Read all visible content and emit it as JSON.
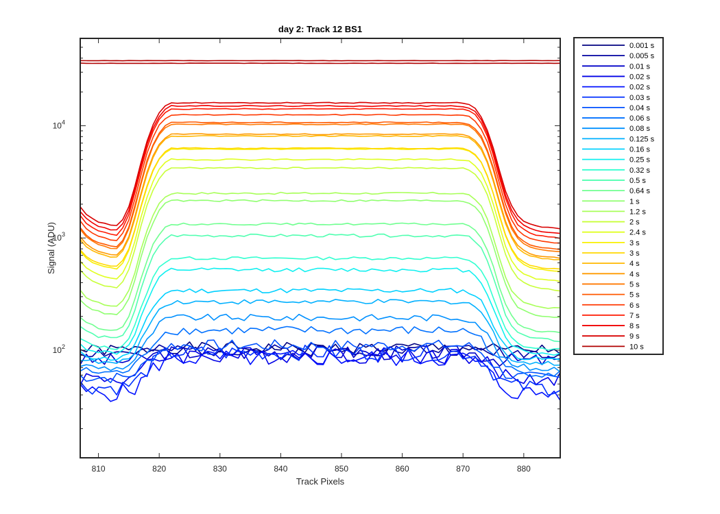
{
  "chart_data": {
    "type": "line",
    "title": "day 2: Track 12  BS1",
    "xlabel": "Track Pixels",
    "ylabel": "Signal (ADU)",
    "xlim": [
      807,
      886
    ],
    "ylim": [
      11,
      60000
    ],
    "yscale": "log",
    "grid": false,
    "legend_position": "outside-right",
    "xticks": [
      810,
      820,
      830,
      840,
      850,
      860,
      870,
      880
    ],
    "yticks": [
      {
        "value": 100,
        "base": "10",
        "exp": "2"
      },
      {
        "value": 1000,
        "base": "10",
        "exp": "3"
      },
      {
        "value": 10000,
        "base": "10",
        "exp": "4"
      }
    ],
    "profile": {
      "x": [
        807,
        808,
        809,
        810,
        811,
        812,
        813,
        814,
        815,
        816,
        817,
        818,
        819,
        820,
        821,
        822,
        823,
        824,
        825,
        826,
        827,
        828,
        829,
        830,
        831,
        832,
        833,
        834,
        835,
        836,
        837,
        838,
        839,
        840,
        841,
        842,
        843,
        844,
        845,
        846,
        847,
        848,
        849,
        850,
        851,
        852,
        853,
        854,
        855,
        856,
        857,
        858,
        859,
        860,
        861,
        862,
        863,
        864,
        865,
        866,
        867,
        868,
        869,
        870,
        871,
        872,
        873,
        874,
        875,
        876,
        877,
        878,
        879,
        880,
        881,
        882,
        883,
        884,
        885,
        886
      ],
      "shape": [
        0.072,
        0.055,
        0.046,
        0.04,
        0.037,
        0.034,
        0.033,
        0.045,
        0.075,
        0.14,
        0.26,
        0.43,
        0.62,
        0.8,
        0.93,
        1.0,
        1.0,
        1.0,
        1.0,
        1.0,
        1.0,
        1.0,
        1.0,
        1.0,
        1.0,
        1.0,
        1.0,
        1.0,
        1.0,
        1.0,
        1.0,
        1.0,
        1.0,
        1.0,
        1.0,
        1.0,
        1.0,
        1.0,
        1.0,
        1.0,
        1.0,
        1.0,
        1.0,
        1.0,
        1.0,
        1.0,
        1.0,
        1.0,
        1.0,
        1.0,
        1.0,
        1.0,
        1.0,
        1.0,
        1.0,
        1.0,
        1.0,
        1.0,
        1.0,
        1.0,
        1.0,
        1.0,
        1.0,
        0.99,
        0.96,
        0.88,
        0.74,
        0.55,
        0.36,
        0.21,
        0.12,
        0.075,
        0.052,
        0.042,
        0.036,
        0.033,
        0.031,
        0.03,
        0.029,
        0.028
      ]
    },
    "series": [
      {
        "name": "0.001 s",
        "color": "#000080",
        "plateau": 105,
        "baseline": 100,
        "noise": 0.12,
        "seed": 1
      },
      {
        "name": "0.005 s",
        "color": "#0000A0",
        "plateau": 100,
        "baseline": 95,
        "noise": 0.12,
        "seed": 2
      },
      {
        "name": "0.01 s",
        "color": "#0000C8",
        "plateau": 95,
        "baseline": 80,
        "noise": 0.15,
        "seed": 3
      },
      {
        "name": "0.02 s",
        "color": "#0000E6",
        "plateau": 90,
        "baseline": 55,
        "noise": 0.18,
        "seed": 4
      },
      {
        "name": "0.02 s",
        "color": "#0010FF",
        "plateau": 85,
        "baseline": 40,
        "noise": 0.18,
        "seed": 5
      },
      {
        "name": "0.03 s",
        "color": "#0030FF",
        "plateau": 95,
        "baseline": 45,
        "noise": 0.16,
        "seed": 6
      },
      {
        "name": "0.04 s",
        "color": "#0050FF",
        "plateau": 110,
        "baseline": 55,
        "noise": 0.12,
        "seed": 7
      },
      {
        "name": "0.06 s",
        "color": "#0070FF",
        "plateau": 150,
        "baseline": 60,
        "noise": 0.09,
        "seed": 8
      },
      {
        "name": "0.08 s",
        "color": "#0090FF",
        "plateau": 195,
        "baseline": 65,
        "noise": 0.07,
        "seed": 9
      },
      {
        "name": "0.125 s",
        "color": "#00B0FF",
        "plateau": 270,
        "baseline": 70,
        "noise": 0.05,
        "seed": 10
      },
      {
        "name": "0.16 s",
        "color": "#00D0FF",
        "plateau": 340,
        "baseline": 75,
        "noise": 0.05,
        "seed": 11
      },
      {
        "name": "0.25 s",
        "color": "#10F0F0",
        "plateau": 520,
        "baseline": 80,
        "noise": 0.04,
        "seed": 12
      },
      {
        "name": "0.32 s",
        "color": "#30FFD0",
        "plateau": 660,
        "baseline": 85,
        "noise": 0.03,
        "seed": 13
      },
      {
        "name": "0.5 s",
        "color": "#50FFB0",
        "plateau": 1050,
        "baseline": 95,
        "noise": 0.03,
        "seed": 14
      },
      {
        "name": "0.64 s",
        "color": "#70FF90",
        "plateau": 1330,
        "baseline": 110,
        "noise": 0.02,
        "seed": 15
      },
      {
        "name": "1 s",
        "color": "#90FF70",
        "plateau": 2150,
        "baseline": 140,
        "noise": 0.02,
        "seed": 16
      },
      {
        "name": "1.2 s",
        "color": "#A8FF58",
        "plateau": 2500,
        "baseline": 170,
        "noise": 0.02,
        "seed": 17
      },
      {
        "name": "2 s",
        "color": "#C8FF38",
        "plateau": 4200,
        "baseline": 230,
        "noise": 0.015,
        "seed": 18
      },
      {
        "name": "2.4 s",
        "color": "#E0FF20",
        "plateau": 5000,
        "baseline": 280,
        "noise": 0.015,
        "seed": 19
      },
      {
        "name": "3 s",
        "color": "#F8F000",
        "plateau": 6200,
        "baseline": 340,
        "noise": 0.01,
        "seed": 20
      },
      {
        "name": "3 s",
        "color": "#FFD800",
        "plateau": 6300,
        "baseline": 360,
        "noise": 0.01,
        "seed": 21
      },
      {
        "name": "4 s",
        "color": "#FFB800",
        "plateau": 8100,
        "baseline": 420,
        "noise": 0.01,
        "seed": 22
      },
      {
        "name": "4 s",
        "color": "#FF9A00",
        "plateau": 8400,
        "baseline": 440,
        "noise": 0.01,
        "seed": 23
      },
      {
        "name": "5 s",
        "color": "#FF7800",
        "plateau": 10300,
        "baseline": 480,
        "noise": 0.01,
        "seed": 24
      },
      {
        "name": "5 s",
        "color": "#FF5800",
        "plateau": 10700,
        "baseline": 500,
        "noise": 0.01,
        "seed": 25
      },
      {
        "name": "6 s",
        "color": "#FF3800",
        "plateau": 12500,
        "baseline": 560,
        "noise": 0.01,
        "seed": 26
      },
      {
        "name": "7 s",
        "color": "#FF1800",
        "plateau": 14100,
        "baseline": 620,
        "noise": 0.01,
        "seed": 27
      },
      {
        "name": "8 s",
        "color": "#F00000",
        "plateau": 15000,
        "baseline": 700,
        "noise": 0.01,
        "seed": 28
      },
      {
        "name": "9 s",
        "color": "#D80000",
        "plateau": 16000,
        "baseline": 780,
        "noise": 0.01,
        "seed": 29
      },
      {
        "name": "10 s",
        "color": "#B00000",
        "flat": [
          38000,
          36000
        ],
        "noise": 0.003,
        "seed": 30
      }
    ]
  }
}
